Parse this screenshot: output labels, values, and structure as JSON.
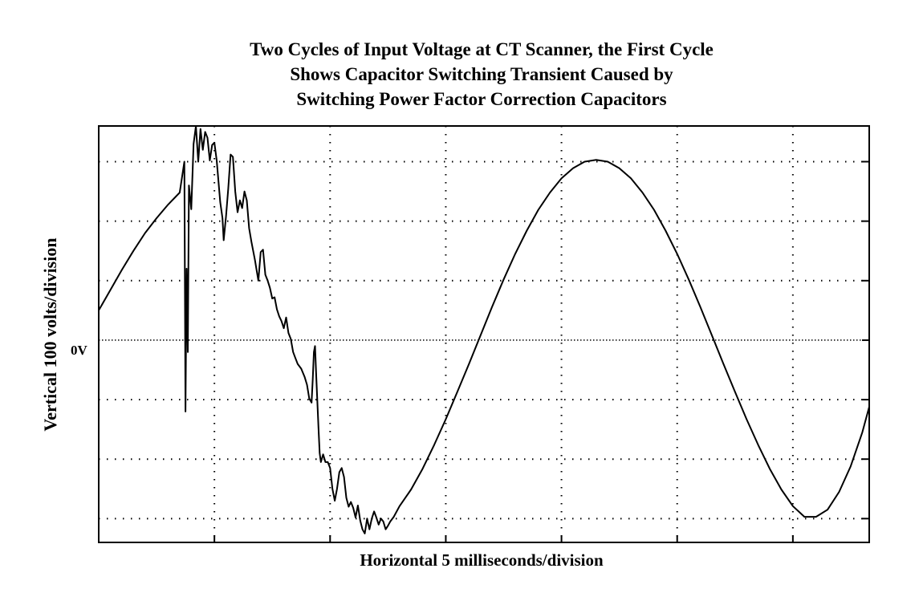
{
  "chart_data": {
    "type": "line",
    "title": [
      "Two Cycles of Input Voltage at CT Scanner, the First Cycle",
      "Shows Capacitor Switching Transient Caused by",
      "Switching Power Factor Correction Capacitors"
    ],
    "xlabel": "Horizontal  5 milliseconds/division",
    "ylabel": "Vertical 100 volts/division",
    "zero_label": "0V",
    "x_unit": "ms",
    "y_unit": "V",
    "xlim": [
      0,
      33.3
    ],
    "ylim": [
      -340,
      360
    ],
    "grid": true,
    "x_grid_step": 5,
    "y_grid_step": 100,
    "series": [
      {
        "points": [
          [
            0,
            50
          ],
          [
            0.5,
            84
          ],
          [
            1,
            118
          ],
          [
            1.5,
            150
          ],
          [
            2,
            180
          ],
          [
            2.5,
            205
          ],
          [
            3,
            228
          ],
          [
            3.5,
            248
          ],
          [
            3.7,
            300
          ],
          [
            3.75,
            -120
          ],
          [
            3.8,
            120
          ],
          [
            3.85,
            -20
          ],
          [
            3.9,
            260
          ],
          [
            4.0,
            220
          ],
          [
            4.1,
            330
          ],
          [
            4.2,
            360
          ],
          [
            4.3,
            300
          ],
          [
            4.4,
            355
          ],
          [
            4.5,
            320
          ],
          [
            4.6,
            350
          ],
          [
            4.7,
            340
          ],
          [
            4.8,
            302
          ],
          [
            4.9,
            328
          ],
          [
            5.0,
            332
          ],
          [
            5.1,
            302
          ],
          [
            5.25,
            232
          ],
          [
            5.35,
            205
          ],
          [
            5.4,
            168
          ],
          [
            5.5,
            208
          ],
          [
            5.6,
            255
          ],
          [
            5.7,
            312
          ],
          [
            5.8,
            308
          ],
          [
            5.9,
            250
          ],
          [
            6.0,
            215
          ],
          [
            6.1,
            235
          ],
          [
            6.2,
            222
          ],
          [
            6.3,
            250
          ],
          [
            6.4,
            235
          ],
          [
            6.5,
            188
          ],
          [
            6.6,
            165
          ],
          [
            6.75,
            135
          ],
          [
            6.9,
            100
          ],
          [
            7.0,
            148
          ],
          [
            7.1,
            152
          ],
          [
            7.2,
            110
          ],
          [
            7.3,
            100
          ],
          [
            7.4,
            88
          ],
          [
            7.5,
            70
          ],
          [
            7.6,
            72
          ],
          [
            7.7,
            52
          ],
          [
            7.8,
            40
          ],
          [
            7.9,
            32
          ],
          [
            8.0,
            20
          ],
          [
            8.1,
            38
          ],
          [
            8.2,
            12
          ],
          [
            8.3,
            2
          ],
          [
            8.4,
            -20
          ],
          [
            8.5,
            -30
          ],
          [
            8.6,
            -40
          ],
          [
            8.75,
            -48
          ],
          [
            8.9,
            -62
          ],
          [
            9.0,
            -75
          ],
          [
            9.1,
            -98
          ],
          [
            9.2,
            -105
          ],
          [
            9.25,
            -65
          ],
          [
            9.3,
            -20
          ],
          [
            9.35,
            -10
          ],
          [
            9.4,
            -60
          ],
          [
            9.5,
            -150
          ],
          [
            9.55,
            -190
          ],
          [
            9.6,
            -205
          ],
          [
            9.7,
            -192
          ],
          [
            9.8,
            -205
          ],
          [
            9.9,
            -205
          ],
          [
            10.0,
            -215
          ],
          [
            10.1,
            -250
          ],
          [
            10.2,
            -270
          ],
          [
            10.3,
            -250
          ],
          [
            10.4,
            -222
          ],
          [
            10.5,
            -215
          ],
          [
            10.6,
            -230
          ],
          [
            10.7,
            -265
          ],
          [
            10.8,
            -280
          ],
          [
            10.9,
            -272
          ],
          [
            11.0,
            -282
          ],
          [
            11.1,
            -298
          ],
          [
            11.2,
            -278
          ],
          [
            11.3,
            -303
          ],
          [
            11.4,
            -318
          ],
          [
            11.5,
            -325
          ],
          [
            11.6,
            -300
          ],
          [
            11.7,
            -318
          ],
          [
            11.8,
            -300
          ],
          [
            11.9,
            -288
          ],
          [
            12.0,
            -298
          ],
          [
            12.1,
            -310
          ],
          [
            12.2,
            -300
          ],
          [
            12.3,
            -305
          ],
          [
            12.4,
            -318
          ],
          [
            12.5,
            -312
          ],
          [
            12.6,
            -305
          ],
          [
            12.75,
            -297
          ],
          [
            13.0,
            -279
          ],
          [
            13.5,
            -251
          ],
          [
            14.0,
            -216
          ],
          [
            14.5,
            -176
          ],
          [
            15.0,
            -133
          ],
          [
            15.5,
            -87
          ],
          [
            16.0,
            -40
          ],
          [
            16.5,
            8
          ],
          [
            17.0,
            56
          ],
          [
            17.5,
            102
          ],
          [
            18.0,
            145
          ],
          [
            18.5,
            184
          ],
          [
            19.0,
            219
          ],
          [
            19.5,
            248
          ],
          [
            20.0,
            272
          ],
          [
            20.5,
            289
          ],
          [
            21.0,
            300
          ],
          [
            21.5,
            303
          ],
          [
            22.0,
            300
          ],
          [
            22.5,
            289
          ],
          [
            23.0,
            272
          ],
          [
            23.5,
            248
          ],
          [
            24.0,
            219
          ],
          [
            24.5,
            184
          ],
          [
            25.0,
            145
          ],
          [
            25.5,
            102
          ],
          [
            26.0,
            56
          ],
          [
            26.5,
            8
          ],
          [
            27.0,
            -40
          ],
          [
            27.5,
            -87
          ],
          [
            28.0,
            -133
          ],
          [
            28.5,
            -176
          ],
          [
            29.0,
            -216
          ],
          [
            29.5,
            -251
          ],
          [
            30.0,
            -279
          ],
          [
            30.5,
            -297
          ],
          [
            31.0,
            -297
          ],
          [
            31.5,
            -285
          ],
          [
            32.0,
            -255
          ],
          [
            32.5,
            -212
          ],
          [
            33.0,
            -155
          ],
          [
            33.3,
            -112
          ]
        ]
      }
    ]
  }
}
